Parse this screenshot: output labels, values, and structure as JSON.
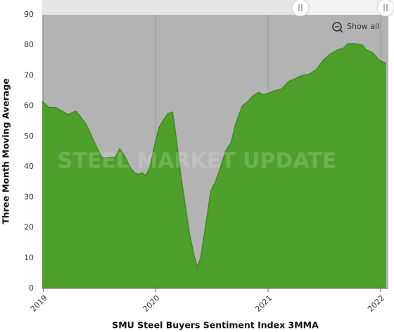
{
  "chart_data": {
    "type": "area",
    "x_label": "SMU Steel Buyers Sentiment Index 3MMA",
    "y_label": "Three Month Moving Average",
    "watermark": "STEEL MARKET UPDATE",
    "button": "Show all",
    "color": "#4f9f2c",
    "line_color": "#3d8a1e",
    "background": "#b3b3b3",
    "grid": true,
    "x": [
      2018.99,
      2019.05,
      2019.11,
      2019.18,
      2019.22,
      2019.29,
      2019.33,
      2019.38,
      2019.43,
      2019.48,
      2019.52,
      2019.58,
      2019.64,
      2019.68,
      2019.73,
      2019.77,
      2019.81,
      2019.85,
      2019.88,
      2019.91,
      2019.95,
      2019.99,
      2020.03,
      2020.08,
      2020.11,
      2020.15,
      2020.18,
      2020.22,
      2020.26,
      2020.3,
      2020.34,
      2020.37,
      2020.4,
      2020.45,
      2020.49,
      2020.53,
      2020.57,
      2020.62,
      2020.67,
      2020.71,
      2020.77,
      2020.82,
      2020.87,
      2020.92,
      2020.95,
      2020.99,
      2021.05,
      2021.12,
      2021.18,
      2021.24,
      2021.3,
      2021.37,
      2021.43,
      2021.49,
      2021.55,
      2021.62,
      2021.67,
      2021.71,
      2021.77,
      2021.84,
      2021.87,
      2021.93,
      2021.99,
      2022.05
    ],
    "values": [
      61.5,
      59.5,
      59.5,
      58,
      57.2,
      58.3,
      56.5,
      54,
      50,
      46,
      43,
      43,
      43,
      46,
      43,
      40,
      38,
      37.5,
      38,
      37,
      40,
      47,
      53,
      56,
      57.5,
      58,
      50,
      38,
      28,
      18,
      11,
      7,
      10,
      22,
      32,
      35,
      39,
      45,
      48,
      54,
      60,
      61.5,
      63.5,
      64.5,
      63.7,
      64,
      65,
      65.5,
      68,
      69,
      70,
      70.5,
      72,
      75,
      77,
      78.5,
      79,
      80.5,
      80.5,
      80,
      78.5,
      77.5,
      75,
      74
    ],
    "xlim": [
      2018.99,
      2022.07
    ],
    "xticks": [
      2019,
      2020,
      2021,
      2022
    ],
    "ylim": [
      0,
      90
    ],
    "yticks": [
      0,
      10,
      20,
      30,
      40,
      50,
      60,
      70,
      80,
      90
    ]
  }
}
